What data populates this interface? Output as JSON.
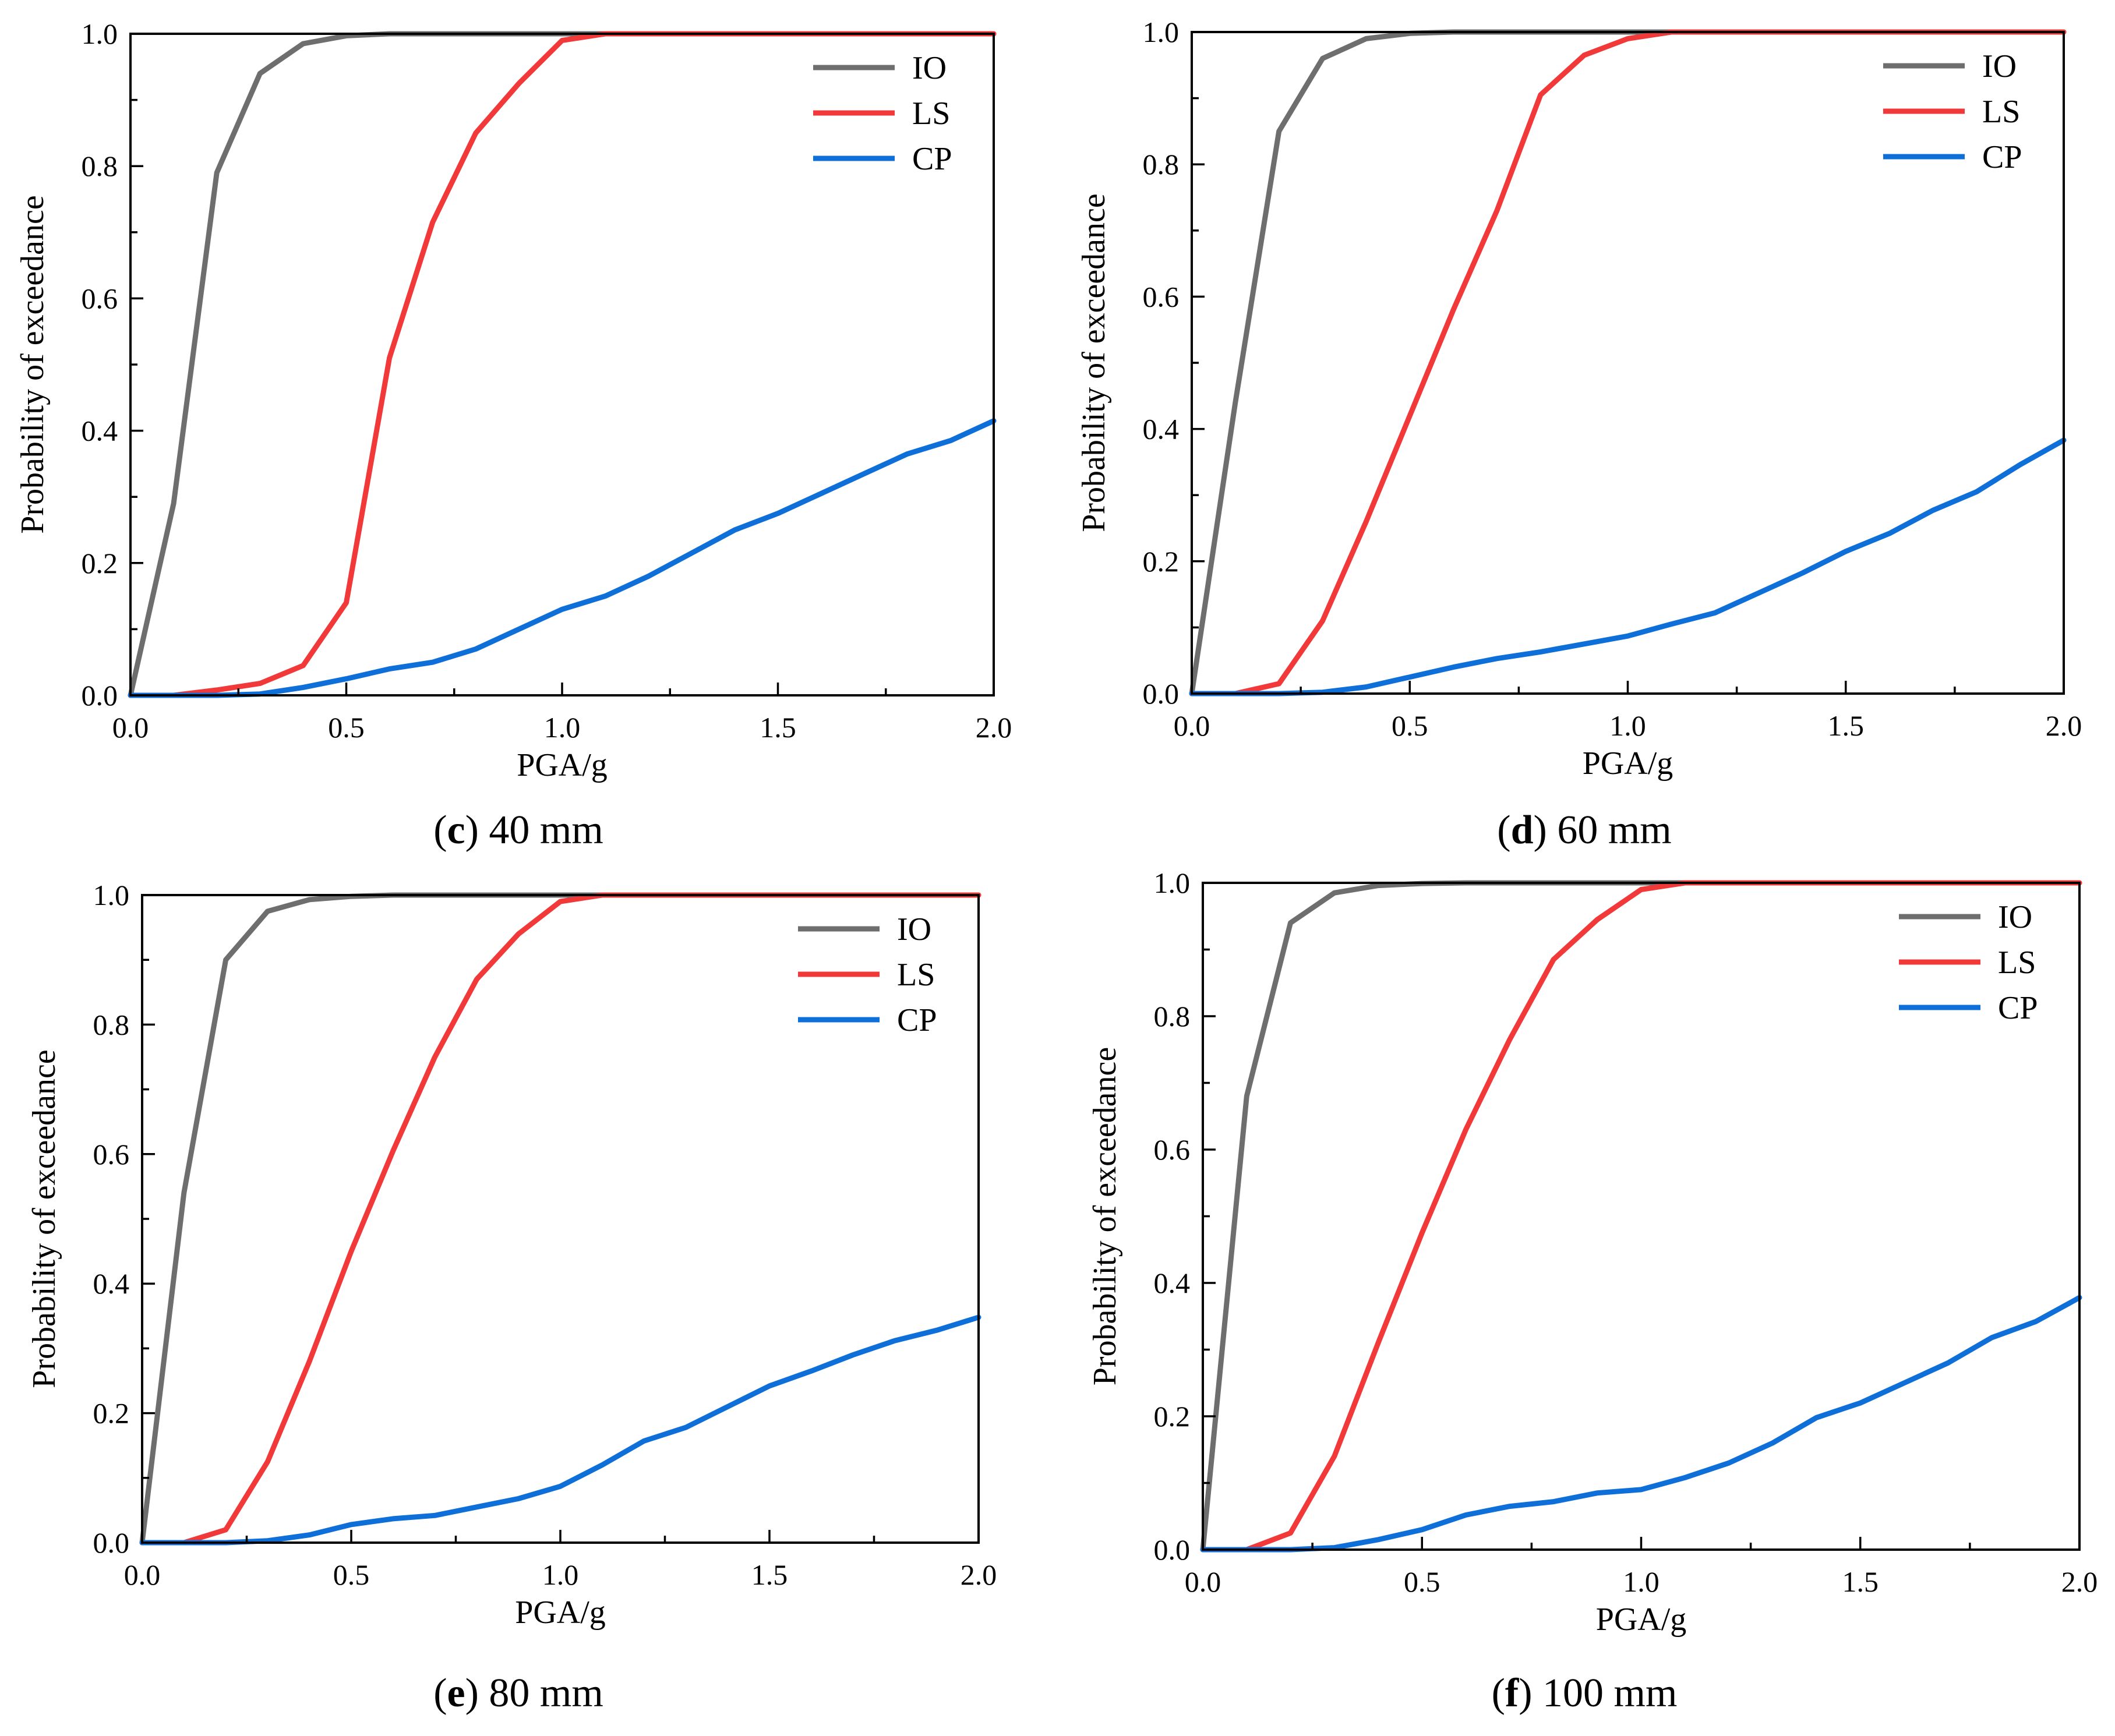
{
  "colors": {
    "IO": "#6e6e6e",
    "LS": "#f2393a",
    "CP": "#0f6fd8"
  },
  "chart_data": [
    {
      "type": "line",
      "caption_letter": "c",
      "caption_text": " 40 mm",
      "xlabel": "PGA/g",
      "ylabel": "Probability of exceedance",
      "xlim": [
        0,
        2.0
      ],
      "ylim": [
        0,
        1.0
      ],
      "xticks": [
        "0.0",
        "0.5",
        "1.0",
        "1.5",
        "2.0"
      ],
      "yticks": [
        "0.0",
        "0.2",
        "0.4",
        "0.6",
        "0.8",
        "1.0"
      ],
      "legend": "top-right",
      "x": [
        0,
        0.1,
        0.2,
        0.3,
        0.4,
        0.5,
        0.6,
        0.7,
        0.8,
        0.9,
        1.0,
        1.1,
        1.2,
        1.3,
        1.4,
        1.5,
        1.6,
        1.7,
        1.8,
        1.9,
        2.0
      ],
      "series": [
        {
          "name": "IO",
          "values": [
            0,
            0.29,
            0.79,
            0.94,
            0.985,
            0.997,
            1,
            1,
            1,
            1,
            1,
            1,
            1,
            1,
            1,
            1,
            1,
            1,
            1,
            1,
            1
          ]
        },
        {
          "name": "LS",
          "values": [
            0,
            0,
            0.008,
            0.018,
            0.045,
            0.14,
            0.51,
            0.715,
            0.85,
            0.925,
            0.99,
            1,
            1,
            1,
            1,
            1,
            1,
            1,
            1,
            1,
            1
          ]
        },
        {
          "name": "CP",
          "values": [
            0,
            0,
            0,
            0.002,
            0.012,
            0.025,
            0.04,
            0.05,
            0.07,
            0.1,
            0.13,
            0.15,
            0.18,
            0.215,
            0.25,
            0.275,
            0.305,
            0.335,
            0.365,
            0.385,
            0.415
          ]
        }
      ]
    },
    {
      "type": "line",
      "caption_letter": "d",
      "caption_text": " 60 mm",
      "xlabel": "PGA/g",
      "ylabel": "Probability of exceedance",
      "xlim": [
        0,
        2.0
      ],
      "ylim": [
        0,
        1.0
      ],
      "xticks": [
        "0.0",
        "0.5",
        "1.0",
        "1.5",
        "2.0"
      ],
      "yticks": [
        "0.0",
        "0.2",
        "0.4",
        "0.6",
        "0.8",
        "1.0"
      ],
      "legend": "top-right",
      "x": [
        0,
        0.1,
        0.2,
        0.3,
        0.4,
        0.5,
        0.6,
        0.7,
        0.8,
        0.9,
        1.0,
        1.1,
        1.2,
        1.3,
        1.4,
        1.5,
        1.6,
        1.7,
        1.8,
        1.9,
        2.0
      ],
      "series": [
        {
          "name": "IO",
          "values": [
            0,
            0.44,
            0.85,
            0.96,
            0.99,
            0.998,
            1,
            1,
            1,
            1,
            1,
            1,
            1,
            1,
            1,
            1,
            1,
            1,
            1,
            1,
            1
          ]
        },
        {
          "name": "LS",
          "values": [
            0,
            0,
            0.015,
            0.11,
            0.26,
            0.42,
            0.58,
            0.73,
            0.905,
            0.965,
            0.99,
            1,
            1,
            1,
            1,
            1,
            1,
            1,
            1,
            1,
            1
          ]
        },
        {
          "name": "CP",
          "values": [
            0,
            0,
            0,
            0.002,
            0.01,
            0.025,
            0.04,
            0.053,
            0.063,
            0.075,
            0.087,
            0.105,
            0.122,
            0.152,
            0.182,
            0.215,
            0.242,
            0.277,
            0.305,
            0.346,
            0.383
          ]
        }
      ]
    },
    {
      "type": "line",
      "caption_letter": "e",
      "caption_text": " 80 mm",
      "xlabel": "PGA/g",
      "ylabel": "Probability of exceedance",
      "xlim": [
        0,
        2.0
      ],
      "ylim": [
        0,
        1.0
      ],
      "xticks": [
        "0.0",
        "0.5",
        "1.0",
        "1.5",
        "2.0"
      ],
      "yticks": [
        "0.0",
        "0.2",
        "0.4",
        "0.6",
        "0.8",
        "1.0"
      ],
      "legend": "top-right",
      "x": [
        0,
        0.1,
        0.2,
        0.3,
        0.4,
        0.5,
        0.6,
        0.7,
        0.8,
        0.9,
        1.0,
        1.1,
        1.2,
        1.3,
        1.4,
        1.5,
        1.6,
        1.7,
        1.8,
        1.9,
        2.0
      ],
      "series": [
        {
          "name": "IO",
          "values": [
            0,
            0.54,
            0.9,
            0.975,
            0.993,
            0.998,
            1,
            1,
            1,
            1,
            1,
            1,
            1,
            1,
            1,
            1,
            1,
            1,
            1,
            1,
            1
          ]
        },
        {
          "name": "LS",
          "values": [
            0,
            0,
            0.02,
            0.125,
            0.28,
            0.45,
            0.605,
            0.75,
            0.87,
            0.94,
            0.99,
            1,
            1,
            1,
            1,
            1,
            1,
            1,
            1,
            1,
            1
          ]
        },
        {
          "name": "CP",
          "values": [
            0,
            0,
            0,
            0.003,
            0.012,
            0.028,
            0.037,
            0.042,
            0.055,
            0.068,
            0.087,
            0.12,
            0.157,
            0.178,
            0.21,
            0.242,
            0.265,
            0.29,
            0.312,
            0.328,
            0.348
          ]
        }
      ]
    },
    {
      "type": "line",
      "caption_letter": "f",
      "caption_text": " 100 mm",
      "xlabel": "PGA/g",
      "ylabel": "Probability of exceedance",
      "xlim": [
        0,
        2.0
      ],
      "ylim": [
        0,
        1.0
      ],
      "xticks": [
        "0.0",
        "0.5",
        "1.0",
        "1.5",
        "2.0"
      ],
      "yticks": [
        "0.0",
        "0.2",
        "0.4",
        "0.6",
        "0.8",
        "1.0"
      ],
      "legend": "top-right",
      "x": [
        0,
        0.1,
        0.2,
        0.3,
        0.4,
        0.5,
        0.6,
        0.7,
        0.8,
        0.9,
        1.0,
        1.1,
        1.2,
        1.3,
        1.4,
        1.5,
        1.6,
        1.7,
        1.8,
        1.9,
        2.0
      ],
      "series": [
        {
          "name": "IO",
          "values": [
            0,
            0.68,
            0.94,
            0.985,
            0.996,
            0.999,
            1,
            1,
            1,
            1,
            1,
            1,
            1,
            1,
            1,
            1,
            1,
            1,
            1,
            1,
            1
          ]
        },
        {
          "name": "LS",
          "values": [
            0,
            0,
            0.025,
            0.14,
            0.31,
            0.475,
            0.63,
            0.765,
            0.885,
            0.945,
            0.99,
            1,
            1,
            1,
            1,
            1,
            1,
            1,
            1,
            1,
            1
          ]
        },
        {
          "name": "CP",
          "values": [
            0,
            0,
            0,
            0.003,
            0.015,
            0.03,
            0.052,
            0.065,
            0.072,
            0.085,
            0.09,
            0.108,
            0.13,
            0.16,
            0.198,
            0.22,
            0.25,
            0.28,
            0.318,
            0.342,
            0.378
          ]
        }
      ]
    }
  ]
}
